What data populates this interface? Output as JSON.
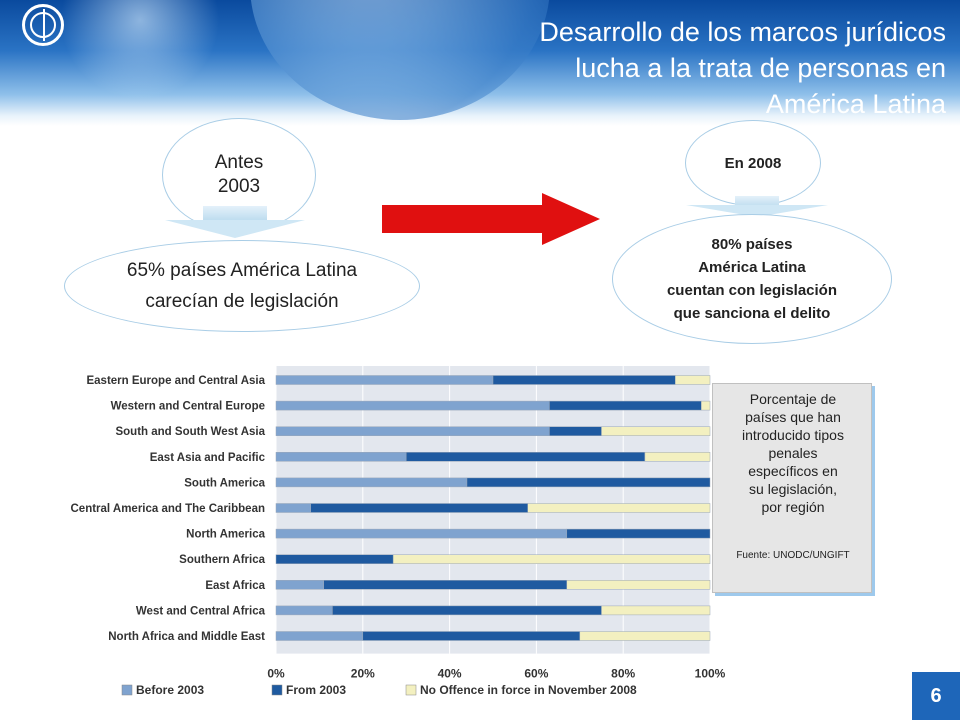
{
  "slide": {
    "title_lines": [
      "Desarrollo de los marcos jurídicos",
      "lucha a la trata de personas en",
      "América Latina"
    ],
    "page_number": "6"
  },
  "left_block": {
    "top_lines": [
      "Antes",
      "2003"
    ],
    "bottom_lines": [
      "65% países América Latina",
      "carecían de legislación"
    ]
  },
  "right_block": {
    "top": "En 2008",
    "bottom_lines": [
      "80% países",
      "América Latina",
      "cuentan con legislación",
      "que sanciona el delito"
    ]
  },
  "note": {
    "text_lines": [
      "Porcentaje de",
      "países que han",
      "introducido tipos",
      "penales",
      "específicos en",
      "su legislación,",
      "por región"
    ],
    "source": "Fuente: UNODC/UNGIFT"
  },
  "colors": {
    "before": "#7fa3cf",
    "from": "#1f5aa0",
    "none": "#f3f0c0",
    "arrow": "#e01010"
  },
  "chart_data": {
    "type": "bar",
    "orientation": "horizontal",
    "stacked": true,
    "categories": [
      "Eastern Europe and Central Asia",
      "Western and Central Europe",
      "South and South West Asia",
      "East Asia and Pacific",
      "South America",
      "Central America and The Caribbean",
      "North America",
      "Southern Africa",
      "East Africa",
      "West and Central Africa",
      "North Africa and Middle East"
    ],
    "series": [
      {
        "name": "Before 2003",
        "values": [
          50,
          63,
          63,
          30,
          44,
          8,
          67,
          0,
          11,
          13,
          20
        ]
      },
      {
        "name": "From 2003",
        "values": [
          42,
          35,
          12,
          55,
          56,
          50,
          33,
          27,
          56,
          62,
          50
        ]
      },
      {
        "name": "No Offence in force in November 2008",
        "values": [
          8,
          2,
          25,
          15,
          0,
          42,
          0,
          73,
          33,
          25,
          30
        ]
      }
    ],
    "xlim": [
      0,
      100
    ],
    "xticks": [
      "0%",
      "20%",
      "40%",
      "60%",
      "80%",
      "100%"
    ],
    "legend": "bottom"
  }
}
